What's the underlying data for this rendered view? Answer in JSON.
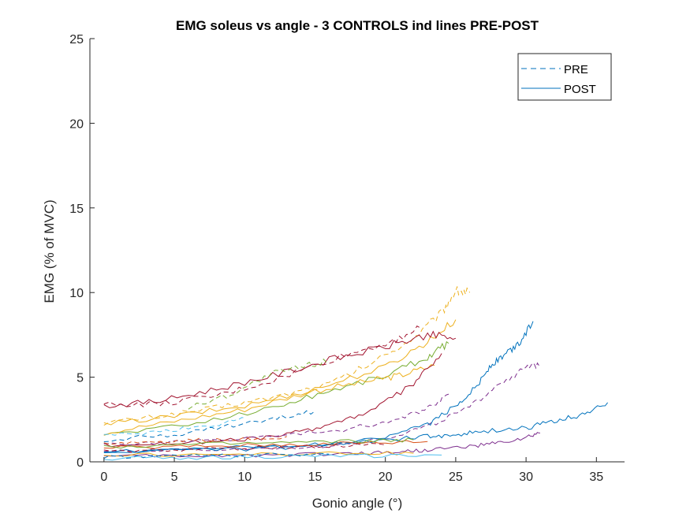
{
  "chart_data": {
    "type": "line",
    "title": "EMG soleus vs angle - 3 CONTROLS ind lines PRE-POST",
    "xlabel": "Gonio angle (°)",
    "ylabel": "EMG (% of MVC)",
    "xlim": [
      -1,
      37
    ],
    "ylim": [
      0,
      25
    ],
    "xticks": [
      0,
      5,
      10,
      15,
      20,
      25,
      30,
      35
    ],
    "yticks": [
      0,
      5,
      10,
      15,
      20,
      25
    ],
    "grid": false,
    "legend": {
      "position": "top-right",
      "entries": [
        {
          "label": "PRE",
          "style": "dashed",
          "color": "#0072BD"
        },
        {
          "label": "POST",
          "style": "solid",
          "color": "#0072BD"
        }
      ]
    },
    "series": [
      {
        "color": "#EDB120",
        "style": "dashed",
        "x": [
          0,
          4,
          8,
          12,
          16,
          19,
          22,
          24,
          25,
          26
        ],
        "y": [
          2.3,
          2.7,
          3.2,
          3.8,
          4.6,
          5.8,
          7.3,
          8.8,
          10.1,
          10.0
        ]
      },
      {
        "color": "#EDB120",
        "style": "solid",
        "x": [
          0,
          5,
          10,
          15,
          20,
          23,
          25
        ],
        "y": [
          2.2,
          2.7,
          3.3,
          4.3,
          5.6,
          7.1,
          8.4
        ]
      },
      {
        "color": "#A2142F",
        "style": "solid",
        "x": [
          0,
          4,
          8,
          12,
          16,
          20,
          23,
          25
        ],
        "y": [
          3.3,
          3.6,
          4.3,
          5.1,
          6.0,
          6.8,
          7.5,
          7.3
        ]
      },
      {
        "color": "#A2142F",
        "style": "dashed",
        "x": [
          0,
          4,
          8,
          12,
          16,
          20,
          22.5
        ],
        "y": [
          3.4,
          3.4,
          3.9,
          4.8,
          6.0,
          7.0,
          7.9
        ]
      },
      {
        "color": "#77AC30",
        "style": "solid",
        "x": [
          0,
          6,
          12,
          16,
          20,
          23,
          24.5
        ],
        "y": [
          1.6,
          2.2,
          3.2,
          4.2,
          5.1,
          6.2,
          7.0
        ]
      },
      {
        "color": "#77AC30",
        "style": "dashed",
        "x": [
          6,
          9,
          12,
          14,
          16
        ],
        "y": [
          3.2,
          4.0,
          5.2,
          5.6,
          6.0
        ]
      },
      {
        "color": "#EDB120",
        "style": "solid",
        "x": [
          0,
          5,
          10,
          15,
          19,
          21,
          23.5
        ],
        "y": [
          1.7,
          2.4,
          3.1,
          4.2,
          4.8,
          5.1,
          5.7
        ]
      },
      {
        "color": "#A2142F",
        "style": "solid",
        "x": [
          0,
          5,
          10,
          13,
          16,
          19,
          22,
          24
        ],
        "y": [
          1.0,
          1.1,
          1.3,
          1.6,
          2.2,
          3.0,
          4.6,
          6.4
        ]
      },
      {
        "color": "#7E2F8E",
        "style": "dashed",
        "x": [
          0,
          6,
          12,
          17,
          21,
          23,
          24.5
        ],
        "y": [
          1.0,
          1.2,
          1.5,
          1.9,
          2.5,
          3.2,
          4.0
        ]
      },
      {
        "color": "#7E2F8E",
        "style": "dashed",
        "x": [
          0,
          8,
          15,
          20,
          23,
          26,
          28,
          30,
          31
        ],
        "y": [
          0.6,
          0.7,
          0.9,
          1.4,
          2.1,
          3.2,
          4.6,
          5.5,
          5.8
        ]
      },
      {
        "color": "#0072BD",
        "style": "solid",
        "x": [
          0,
          8,
          15,
          20,
          23,
          25,
          26.5,
          27.5,
          28.5,
          29.5,
          30.5
        ],
        "y": [
          0.6,
          0.7,
          0.9,
          1.4,
          2.2,
          3.3,
          4.5,
          5.7,
          6.3,
          7.0,
          8.3
        ]
      },
      {
        "color": "#0072BD",
        "style": "solid",
        "x": [
          0,
          8,
          15,
          20,
          23,
          25,
          27,
          30,
          32,
          34,
          35.8
        ],
        "y": [
          0.6,
          0.8,
          1.0,
          1.3,
          1.5,
          1.6,
          1.8,
          2.0,
          2.4,
          2.8,
          3.5
        ]
      },
      {
        "color": "#0072BD",
        "style": "dashed",
        "x": [
          0,
          5,
          8,
          12,
          15
        ],
        "y": [
          1.3,
          1.6,
          2.0,
          2.5,
          3.0
        ]
      },
      {
        "color": "#4DBEEE",
        "style": "dashed",
        "x": [
          0,
          4,
          8,
          10
        ],
        "y": [
          1.5,
          1.8,
          2.2,
          2.6
        ]
      },
      {
        "color": "#7E2F8E",
        "style": "solid",
        "x": [
          0,
          6,
          12,
          18,
          21,
          23,
          26,
          28,
          30,
          31
        ],
        "y": [
          0.3,
          0.35,
          0.4,
          0.5,
          0.6,
          0.7,
          0.9,
          1.1,
          1.4,
          1.7
        ]
      },
      {
        "color": "#D95319",
        "style": "solid",
        "x": [
          0,
          6,
          12,
          18,
          23
        ],
        "y": [
          0.8,
          0.9,
          1.0,
          1.1,
          1.2
        ]
      },
      {
        "color": "#EDB120",
        "style": "solid",
        "x": [
          0,
          8,
          16,
          22
        ],
        "y": [
          0.4,
          0.45,
          0.5,
          0.5
        ]
      },
      {
        "color": "#4DBEEE",
        "style": "solid",
        "x": [
          0,
          6,
          12,
          18,
          24
        ],
        "y": [
          0.2,
          0.25,
          0.3,
          0.35,
          0.4
        ]
      },
      {
        "color": "#0072BD",
        "style": "dashed",
        "x": [
          0,
          4,
          8,
          12,
          16
        ],
        "y": [
          0.3,
          0.35,
          0.4,
          0.4,
          0.45
        ]
      },
      {
        "color": "#A2142F",
        "style": "dashed",
        "x": [
          0,
          5,
          10,
          15,
          20
        ],
        "y": [
          0.6,
          0.7,
          0.8,
          0.9,
          1.0
        ]
      },
      {
        "color": "#77AC30",
        "style": "solid",
        "x": [
          0,
          6,
          12,
          18,
          22
        ],
        "y": [
          0.9,
          1.0,
          1.1,
          1.2,
          1.3
        ]
      },
      {
        "color": "#D95319",
        "style": "dashed",
        "x": [
          0,
          4,
          8,
          13
        ],
        "y": [
          1.1,
          1.2,
          1.3,
          1.5
        ]
      }
    ]
  }
}
